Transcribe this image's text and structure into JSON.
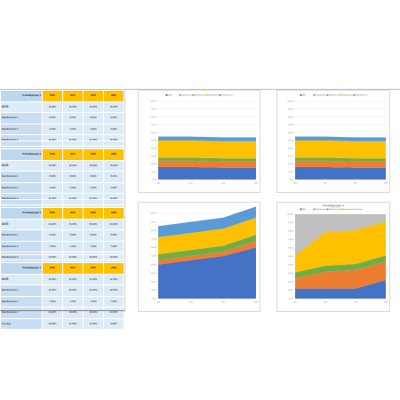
{
  "years": [
    "2020",
    "2021",
    "2022",
    "2023"
  ],
  "tables": [
    {
      "title": "Produktgruppe 1",
      "rows": [
        {
          "label": "AVG",
          "values": [
            "16,00%",
            "16,00%",
            "15,00%",
            "15,00%"
          ],
          "type": "awr"
        },
        {
          "label": "Marktbereiche 1",
          "values": [
            "8,00%",
            "8,00%",
            "8,00%",
            "8,00%"
          ]
        },
        {
          "label": "Marktbereiche 2",
          "values": [
            "4,00%",
            "4,00%",
            "4,00%",
            "4,00%"
          ]
        },
        {
          "label": "Marktbereiche 3",
          "values": [
            "22,00%",
            "22,00%",
            "22,00%",
            "22,00%"
          ]
        },
        {
          "label": "Marktbereiche 4",
          "values": [
            "5,00%",
            "5,00%",
            "5,00%",
            "5,00%"
          ]
        }
      ]
    },
    {
      "title": "Produktgruppe 2",
      "rows": [
        {
          "label": "AVG",
          "values": [
            "16,00%",
            "16,00%",
            "15,00%",
            "15,00%"
          ],
          "type": "awr"
        },
        {
          "label": "Marktbereiche 1",
          "values": [
            "8,00%",
            "8,00%",
            "8,00%",
            "8,00%"
          ]
        },
        {
          "label": "Marktbereiche 2",
          "values": [
            "4,00%",
            "4,00%",
            "4,00%",
            "4,00%"
          ]
        },
        {
          "label": "Marktbereiche 3",
          "values": [
            "22,00%",
            "22,00%",
            "22,00%",
            "22,00%"
          ]
        },
        {
          "label": "Marktbereiche 4",
          "values": [
            "5,00%",
            "5,00%",
            "5,00%",
            "5,00%"
          ]
        }
      ]
    },
    {
      "title": "Produktgruppe 3",
      "rows": [
        {
          "label": "AVG",
          "values": [
            "40,00%",
            "45,00%",
            "50,00%",
            "60,00%"
          ],
          "type": "awr"
        },
        {
          "label": "Marktbereiche 1",
          "values": [
            "5,00%",
            "5,00%",
            "5,00%",
            "8,00%"
          ]
        },
        {
          "label": "Marktbereiche 2",
          "values": [
            "7,00%",
            "7,00%",
            "7,00%",
            "7,00%"
          ]
        },
        {
          "label": "Marktbereiche 3",
          "values": [
            "20,00%",
            "20,00%",
            "20,00%",
            "20,00%"
          ]
        },
        {
          "label": "Marktbereiche 4",
          "values": [
            "13,00%",
            "13,00%",
            "13,00%",
            "13,00%"
          ]
        }
      ]
    },
    {
      "title": "Produktgruppe 4",
      "rows": [
        {
          "label": "AVG",
          "values": [
            "12,00%",
            "12,00%",
            "12,00%",
            "22,00%"
          ],
          "type": "awr"
        },
        {
          "label": "Marktbereiche 1",
          "values": [
            "12,00%",
            "20,00%",
            "22,00%",
            "22,00%"
          ]
        },
        {
          "label": "Marktbereiche 2",
          "values": [
            "7,00%",
            "7,00%",
            "7,00%",
            "7,00%"
          ]
        },
        {
          "label": "Marktbereiche 3",
          "values": [
            "20,00%",
            "40,00%",
            "40,00%",
            "40,00%"
          ]
        },
        {
          "label": "Sonstige",
          "values": [
            "49,00%",
            "21,00%",
            "19,00%",
            "9,00%"
          ]
        }
      ]
    }
  ],
  "charts": [
    {
      "title": "",
      "colors": [
        "#4472c4",
        "#ed7d31",
        "#70ad47",
        "#ffc000",
        "#5b9bd5"
      ],
      "legend": [
        "AVG",
        "Marktbereiche 1",
        "Marktbereiche 2",
        "Marktbereiche 3",
        "Marktbereiche 4"
      ],
      "ymax": 100,
      "yticks": [
        "100,00%",
        "90,00%",
        "80,00%",
        "70,00%",
        "60,00%",
        "50,00%",
        "40,00%",
        "30,00%",
        "20,00%",
        "10,00%",
        "0,00%"
      ],
      "x": [
        "2020",
        "2021",
        "2022",
        "2023"
      ],
      "series": [
        [
          16,
          16,
          15,
          15
        ],
        [
          8,
          8,
          8,
          8
        ],
        [
          4,
          4,
          4,
          4
        ],
        [
          22,
          22,
          22,
          22
        ],
        [
          5,
          5,
          5,
          5
        ]
      ]
    },
    {
      "title": "",
      "colors": [
        "#4472c4",
        "#ed7d31",
        "#70ad47",
        "#ffc000",
        "#5b9bd5"
      ],
      "legend": [
        "AVG",
        "Marktbereiche 1",
        "Marktbereiche 2",
        "Marktbereiche 3",
        "Marktbereiche 4"
      ],
      "ymax": 100,
      "yticks": [
        "100,00%",
        "90,00%",
        "80,00%",
        "70,00%",
        "60,00%",
        "50,00%",
        "40,00%",
        "30,00%",
        "20,00%",
        "10,00%",
        "0,00%"
      ],
      "x": [
        "2020",
        "2021",
        "2022",
        "2023"
      ],
      "series": [
        [
          16,
          16,
          15,
          15
        ],
        [
          8,
          8,
          8,
          8
        ],
        [
          4,
          4,
          4,
          4
        ],
        [
          22,
          22,
          22,
          22
        ],
        [
          5,
          5,
          5,
          5
        ]
      ]
    },
    {
      "title": "",
      "colors": [
        "#4472c4",
        "#ed7d31",
        "#70ad47",
        "#ffc000",
        "#5b9bd5"
      ],
      "legend": [],
      "ymax": 100,
      "yticks": [
        "100,00%",
        "90,00%",
        "80,00%",
        "70,00%",
        "60,00%",
        "50,00%",
        "40,00%",
        "30,00%",
        "20,00%",
        "10,00%",
        "0,00%"
      ],
      "x": [
        "2020",
        "2021",
        "2022",
        "2023"
      ],
      "series": [
        [
          40,
          45,
          50,
          60
        ],
        [
          5,
          5,
          5,
          8
        ],
        [
          7,
          7,
          7,
          7
        ],
        [
          20,
          20,
          20,
          20
        ],
        [
          13,
          13,
          13,
          13
        ]
      ]
    },
    {
      "title": "Produktgruppe 4",
      "colors": [
        "#4472c4",
        "#ed7d31",
        "#70ad47",
        "#ffc000",
        "#bfbfbf"
      ],
      "legend": [
        "AVG",
        "Marktbereiche 1",
        "Marktbereiche 2",
        "Marktbereiche 3",
        "Sonstige"
      ],
      "ymax": 100,
      "yticks": [
        "100,00%",
        "90,00%",
        "80,00%",
        "70,00%",
        "60,00%",
        "50,00%",
        "40,00%",
        "30,00%",
        "20,00%",
        "10,00%",
        "0,00%"
      ],
      "x": [
        "2020",
        "2021",
        "2022",
        "2023"
      ],
      "series": [
        [
          12,
          12,
          12,
          22
        ],
        [
          12,
          20,
          22,
          22
        ],
        [
          7,
          7,
          7,
          7
        ],
        [
          20,
          40,
          40,
          40
        ],
        [
          49,
          21,
          19,
          9
        ]
      ]
    }
  ],
  "chart_data": [
    {
      "type": "area",
      "x": [
        "2020",
        "2021",
        "2022",
        "2023"
      ],
      "ylim": [
        0,
        100
      ],
      "series": [
        {
          "name": "AVG",
          "values": [
            16,
            16,
            15,
            15
          ]
        },
        {
          "name": "Marktbereiche 1",
          "values": [
            8,
            8,
            8,
            8
          ]
        },
        {
          "name": "Marktbereiche 2",
          "values": [
            4,
            4,
            4,
            4
          ]
        },
        {
          "name": "Marktbereiche 3",
          "values": [
            22,
            22,
            22,
            22
          ]
        },
        {
          "name": "Marktbereiche 4",
          "values": [
            5,
            5,
            5,
            5
          ]
        }
      ],
      "legend": "top"
    },
    {
      "type": "area",
      "x": [
        "2020",
        "2021",
        "2022",
        "2023"
      ],
      "ylim": [
        0,
        100
      ],
      "series": [
        {
          "name": "AVG",
          "values": [
            16,
            16,
            15,
            15
          ]
        },
        {
          "name": "Marktbereiche 1",
          "values": [
            8,
            8,
            8,
            8
          ]
        },
        {
          "name": "Marktbereiche 2",
          "values": [
            4,
            4,
            4,
            4
          ]
        },
        {
          "name": "Marktbereiche 3",
          "values": [
            22,
            22,
            22,
            22
          ]
        },
        {
          "name": "Marktbereiche 4",
          "values": [
            5,
            5,
            5,
            5
          ]
        }
      ],
      "legend": "top"
    },
    {
      "type": "area",
      "x": [
        "2020",
        "2021",
        "2022",
        "2023"
      ],
      "ylim": [
        0,
        100
      ],
      "series": [
        {
          "values": [
            40,
            45,
            50,
            60
          ]
        },
        {
          "values": [
            5,
            5,
            5,
            8
          ]
        },
        {
          "values": [
            7,
            7,
            7,
            7
          ]
        },
        {
          "values": [
            20,
            20,
            20,
            20
          ]
        },
        {
          "values": [
            13,
            13,
            13,
            13
          ]
        }
      ]
    },
    {
      "type": "area",
      "title": "Produktgruppe 4",
      "x": [
        "2020",
        "2021",
        "2022",
        "2023"
      ],
      "ylim": [
        0,
        100
      ],
      "series": [
        {
          "name": "AVG",
          "values": [
            12,
            12,
            12,
            22
          ]
        },
        {
          "name": "Marktbereiche 1",
          "values": [
            12,
            20,
            22,
            22
          ]
        },
        {
          "name": "Marktbereiche 2",
          "values": [
            7,
            7,
            7,
            7
          ]
        },
        {
          "name": "Marktbereiche 3",
          "values": [
            20,
            40,
            40,
            40
          ]
        },
        {
          "name": "Sonstige",
          "values": [
            49,
            21,
            19,
            9
          ]
        }
      ],
      "legend": "top"
    }
  ]
}
